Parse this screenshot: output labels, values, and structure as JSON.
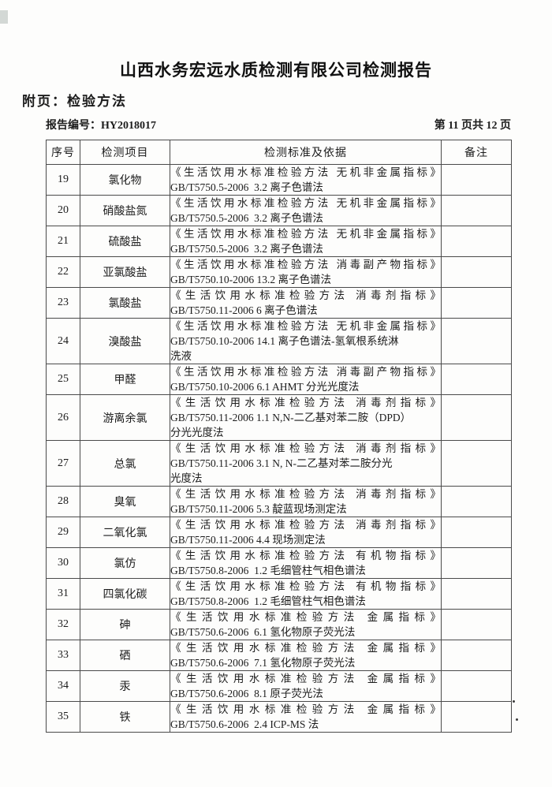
{
  "page": {
    "title": "山西水务宏远水质检测有限公司检测报告",
    "subtitle": "附页：检验方法",
    "report_no_label": "报告编号：",
    "report_no": "HY2018017",
    "page_indicator": "第 11 页共 12 页"
  },
  "table": {
    "headers": [
      "序号",
      "检测项目",
      "检测标准及依据",
      "备注"
    ],
    "rows": [
      {
        "no": "19",
        "item": "氯化物",
        "standard_lines": [
          "《生活饮用水标准检验方法 无机非金属指标》",
          "GB/T5750.5-2006  3.2 离子色谱法"
        ],
        "remark": ""
      },
      {
        "no": "20",
        "item": "硝酸盐氮",
        "standard_lines": [
          "《生活饮用水标准检验方法 无机非金属指标》",
          "GB/T5750.5-2006  3.2 离子色谱法"
        ],
        "remark": ""
      },
      {
        "no": "21",
        "item": "硫酸盐",
        "standard_lines": [
          "《生活饮用水标准检验方法 无机非金属指标》",
          "GB/T5750.5-2006  3.2 离子色谱法"
        ],
        "remark": ""
      },
      {
        "no": "22",
        "item": "亚氯酸盐",
        "standard_lines": [
          "《生活饮用水标准检验方法 消毒副产物指标》",
          "GB/T5750.10-2006 13.2 离子色谱法"
        ],
        "remark": ""
      },
      {
        "no": "23",
        "item": "氯酸盐",
        "standard_lines": [
          "《生活饮用水标准检验方法 消毒剂指标》",
          "GB/T5750.11-2006 6 离子色谱法"
        ],
        "remark": ""
      },
      {
        "no": "24",
        "item": "溴酸盐",
        "standard_lines": [
          "《生活饮用水标准检验方法 无机非金属指标》",
          "GB/T5750.10-2006 14.1 离子色谱法-氢氧根系统淋",
          "洗液"
        ],
        "remark": ""
      },
      {
        "no": "25",
        "item": "甲醛",
        "standard_lines": [
          "《生活饮用水标准检验方法 消毒副产物指标》",
          "GB/T5750.10-2006 6.1 AHMT 分光光度法"
        ],
        "remark": ""
      },
      {
        "no": "26",
        "item": "游离余氯",
        "standard_lines": [
          "《生活饮用水标准检验方法 消毒剂指标》",
          "GB/T5750.11-2006 1.1 N,N-二乙基对苯二胺（DPD）",
          "分光光度法"
        ],
        "remark": ""
      },
      {
        "no": "27",
        "item": "总氯",
        "standard_lines": [
          "《生活饮用水标准检验方法 消毒剂指标》",
          "GB/T5750.11-2006 3.1 N, N-二乙基对苯二胺分光",
          "光度法"
        ],
        "remark": ""
      },
      {
        "no": "28",
        "item": "臭氧",
        "standard_lines": [
          "《生活饮用水标准检验方法 消毒剂指标》",
          "GB/T5750.11-2006 5.3 靛蓝现场测定法"
        ],
        "remark": ""
      },
      {
        "no": "29",
        "item": "二氧化氯",
        "standard_lines": [
          "《生活饮用水标准检验方法 消毒剂指标》",
          "GB/T5750.11-2006 4.4 现场测定法"
        ],
        "remark": ""
      },
      {
        "no": "30",
        "item": "氯仿",
        "standard_lines": [
          "《生活饮用水标准检验方法 有机物指标》",
          "GB/T5750.8-2006  1.2 毛细管柱气相色谱法"
        ],
        "remark": ""
      },
      {
        "no": "31",
        "item": "四氯化碳",
        "standard_lines": [
          "《生活饮用水标准检验方法 有机物指标》",
          "GB/T5750.8-2006  1.2 毛细管柱气相色谱法"
        ],
        "remark": ""
      },
      {
        "no": "32",
        "item": "砷",
        "standard_lines": [
          "《生活饮用水标准检验方法 金属指标》",
          "GB/T5750.6-2006  6.1 氢化物原子荧光法"
        ],
        "remark": ""
      },
      {
        "no": "33",
        "item": "硒",
        "standard_lines": [
          "《生活饮用水标准检验方法 金属指标》",
          "GB/T5750.6-2006  7.1 氢化物原子荧光法"
        ],
        "remark": ""
      },
      {
        "no": "34",
        "item": "汞",
        "standard_lines": [
          "《生活饮用水标准检验方法 金属指标》",
          "GB/T5750.6-2006  8.1 原子荧光法"
        ],
        "remark": ""
      },
      {
        "no": "35",
        "item": "铁",
        "standard_lines": [
          "《生活饮用水标准检验方法 金属指标》",
          "GB/T5750.6-2006  2.4 ICP-MS 法"
        ],
        "remark": ""
      }
    ]
  }
}
